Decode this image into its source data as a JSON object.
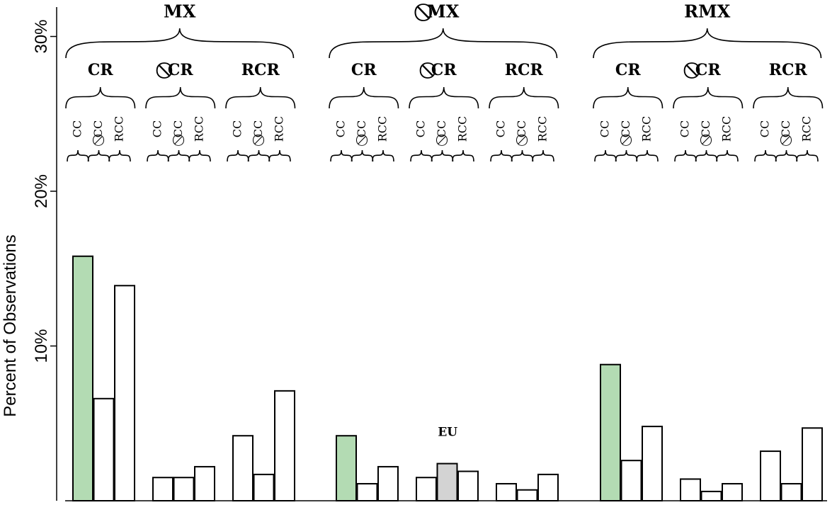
{
  "chart_data": {
    "type": "bar",
    "ylabel": "Percent of Observations",
    "ylim": [
      0,
      31
    ],
    "yticks": [
      10,
      20,
      30
    ],
    "ytick_labels": [
      "10%",
      "20%",
      "30%"
    ],
    "grid": false,
    "groups_level1": [
      "MX",
      "⃠MX",
      "RMX"
    ],
    "groups_level2": [
      "CR",
      "⃠CR",
      "RCR"
    ],
    "groups_level3": [
      "CC",
      "⃠CC",
      "RCC"
    ],
    "values": [
      [
        [
          15.8,
          6.6,
          13.9
        ],
        [
          1.5,
          1.5,
          2.2
        ],
        [
          4.2,
          1.7,
          7.1
        ]
      ],
      [
        [
          4.2,
          1.1,
          2.2
        ],
        [
          1.5,
          2.4,
          1.9
        ],
        [
          1.1,
          0.7,
          1.7
        ]
      ],
      [
        [
          8.8,
          2.6,
          4.8
        ],
        [
          1.4,
          0.6,
          1.1
        ],
        [
          3.2,
          1.1,
          4.7
        ]
      ]
    ],
    "highlight_green": [
      [
        0,
        0,
        0
      ],
      [
        1,
        0,
        0
      ],
      [
        2,
        0,
        0
      ]
    ],
    "highlight_gray": [
      [
        1,
        1,
        1
      ]
    ],
    "colors": {
      "default": "#ffffff",
      "green": "#b3dbb3",
      "gray": "#d3d3d3",
      "outline": "#000000"
    },
    "annotations": [
      {
        "text": "EU",
        "group": [
          1,
          1,
          1
        ]
      }
    ]
  }
}
